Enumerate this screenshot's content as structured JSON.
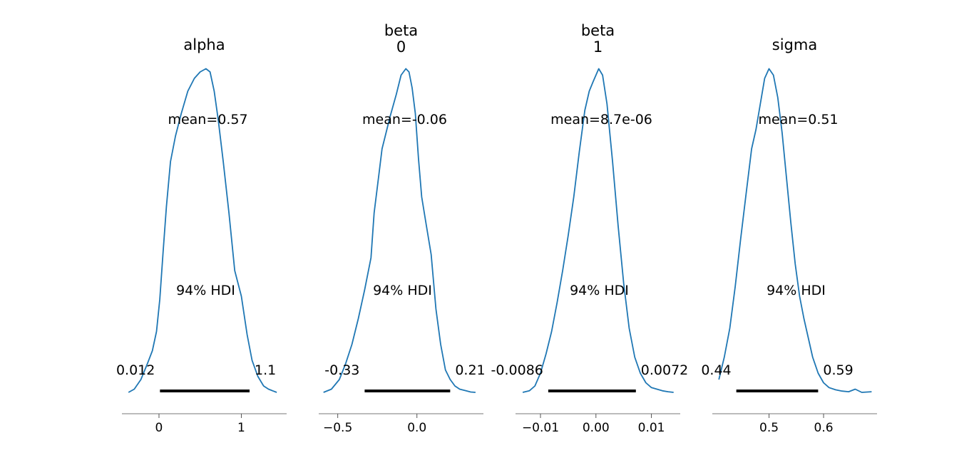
{
  "chart_data": [
    {
      "type": "line",
      "title_lines": [
        "alpha"
      ],
      "xlim": [
        -0.45,
        1.55
      ],
      "xticks": [
        0,
        1
      ],
      "xtick_labels": [
        "0",
        "1"
      ],
      "curve_color": "#1f77b4",
      "density": {
        "x": [
          -0.37,
          -0.3,
          -0.22,
          -0.14,
          -0.08,
          -0.03,
          0.01,
          0.05,
          0.09,
          0.14,
          0.2,
          0.27,
          0.35,
          0.43,
          0.5,
          0.57,
          0.62,
          0.67,
          0.72,
          0.78,
          0.85,
          0.92,
          1.0,
          1.07,
          1.13,
          1.2,
          1.27,
          1.33,
          1.38,
          1.43
        ],
        "y": [
          0.0,
          0.01,
          0.04,
          0.09,
          0.13,
          0.19,
          0.29,
          0.44,
          0.58,
          0.72,
          0.8,
          0.87,
          0.94,
          0.98,
          1.0,
          1.01,
          1.0,
          0.94,
          0.85,
          0.72,
          0.56,
          0.38,
          0.3,
          0.18,
          0.1,
          0.05,
          0.02,
          0.01,
          0.005,
          0.0
        ]
      },
      "mean_label": "mean=0.57",
      "hdi_label": "94% HDI",
      "hdi": [
        0.012,
        1.1
      ],
      "hdi_low_label": "0.012",
      "hdi_high_label": "1.1"
    },
    {
      "type": "line",
      "title_lines": [
        "beta",
        "0"
      ],
      "xlim": [
        -0.62,
        0.42
      ],
      "xticks": [
        -0.5,
        0.0
      ],
      "xtick_labels": [
        "−0.5",
        "0.0"
      ],
      "curve_color": "#1f77b4",
      "density": {
        "x": [
          -0.59,
          -0.54,
          -0.49,
          -0.45,
          -0.41,
          -0.37,
          -0.33,
          -0.29,
          -0.27,
          -0.24,
          -0.22,
          -0.2,
          -0.17,
          -0.13,
          -0.1,
          -0.07,
          -0.05,
          -0.03,
          -0.01,
          0.01,
          0.03,
          0.06,
          0.09,
          0.12,
          0.15,
          0.18,
          0.21,
          0.24,
          0.27,
          0.31,
          0.34,
          0.37
        ],
        "y": [
          0.0,
          0.01,
          0.04,
          0.09,
          0.15,
          0.23,
          0.32,
          0.42,
          0.56,
          0.68,
          0.76,
          0.8,
          0.86,
          0.93,
          0.99,
          1.01,
          1.0,
          0.95,
          0.87,
          0.73,
          0.61,
          0.52,
          0.43,
          0.26,
          0.15,
          0.07,
          0.04,
          0.02,
          0.01,
          0.005,
          0.001,
          0.0
        ]
      },
      "mean_label": "mean=-0.06",
      "hdi_label": "94% HDI",
      "hdi": [
        -0.33,
        0.21
      ],
      "hdi_low_label": "-0.33",
      "hdi_high_label": "0.21"
    },
    {
      "type": "line",
      "title_lines": [
        "beta",
        "1"
      ],
      "xlim": [
        -0.0145,
        0.0152
      ],
      "xticks": [
        -0.01,
        0.0,
        0.01
      ],
      "xtick_labels": [
        "−0.01",
        "0.00",
        "0.01"
      ],
      "curve_color": "#1f77b4",
      "density": {
        "x": [
          -0.0132,
          -0.012,
          -0.011,
          -0.01,
          -0.009,
          -0.008,
          -0.007,
          -0.006,
          -0.005,
          -0.004,
          -0.003,
          -0.002,
          -0.0012,
          -0.0005,
          0.0,
          0.0005,
          0.0012,
          0.002,
          0.003,
          0.004,
          0.005,
          0.006,
          0.007,
          0.008,
          0.009,
          0.01,
          0.011,
          0.012,
          0.013,
          0.014
        ],
        "y": [
          0.0,
          0.005,
          0.02,
          0.06,
          0.12,
          0.19,
          0.28,
          0.38,
          0.49,
          0.61,
          0.75,
          0.88,
          0.94,
          0.97,
          0.99,
          1.01,
          0.99,
          0.9,
          0.72,
          0.52,
          0.34,
          0.2,
          0.11,
          0.06,
          0.03,
          0.015,
          0.01,
          0.005,
          0.002,
          0.0
        ]
      },
      "mean_label": "mean=8.7e-06",
      "hdi_label": "94% HDI",
      "hdi": [
        -0.0086,
        0.0072
      ],
      "hdi_low_label": "-0.0086",
      "hdi_high_label": "0.0072"
    },
    {
      "type": "line",
      "title_lines": [
        "sigma"
      ],
      "xlim": [
        0.396,
        0.698
      ],
      "xticks": [
        0.5,
        0.6
      ],
      "xtick_labels": [
        "0.5",
        "0.6"
      ],
      "curve_color": "#1f77b4",
      "density": {
        "x": [
          0.408,
          0.418,
          0.428,
          0.438,
          0.448,
          0.458,
          0.468,
          0.476,
          0.484,
          0.492,
          0.5,
          0.508,
          0.516,
          0.524,
          0.532,
          0.54,
          0.548,
          0.556,
          0.564,
          0.572,
          0.58,
          0.59,
          0.6,
          0.61,
          0.622,
          0.634,
          0.646,
          0.658,
          0.67,
          0.688
        ],
        "y": [
          0.04,
          0.11,
          0.2,
          0.33,
          0.48,
          0.62,
          0.76,
          0.82,
          0.9,
          0.98,
          1.01,
          0.99,
          0.92,
          0.81,
          0.67,
          0.53,
          0.4,
          0.3,
          0.23,
          0.17,
          0.11,
          0.06,
          0.03,
          0.015,
          0.008,
          0.004,
          0.002,
          0.01,
          0.0,
          0.002
        ]
      },
      "mean_label": "mean=0.51",
      "hdi_label": "94% HDI",
      "hdi": [
        0.44,
        0.59
      ],
      "hdi_low_label": "0.44",
      "hdi_high_label": "0.59"
    }
  ]
}
